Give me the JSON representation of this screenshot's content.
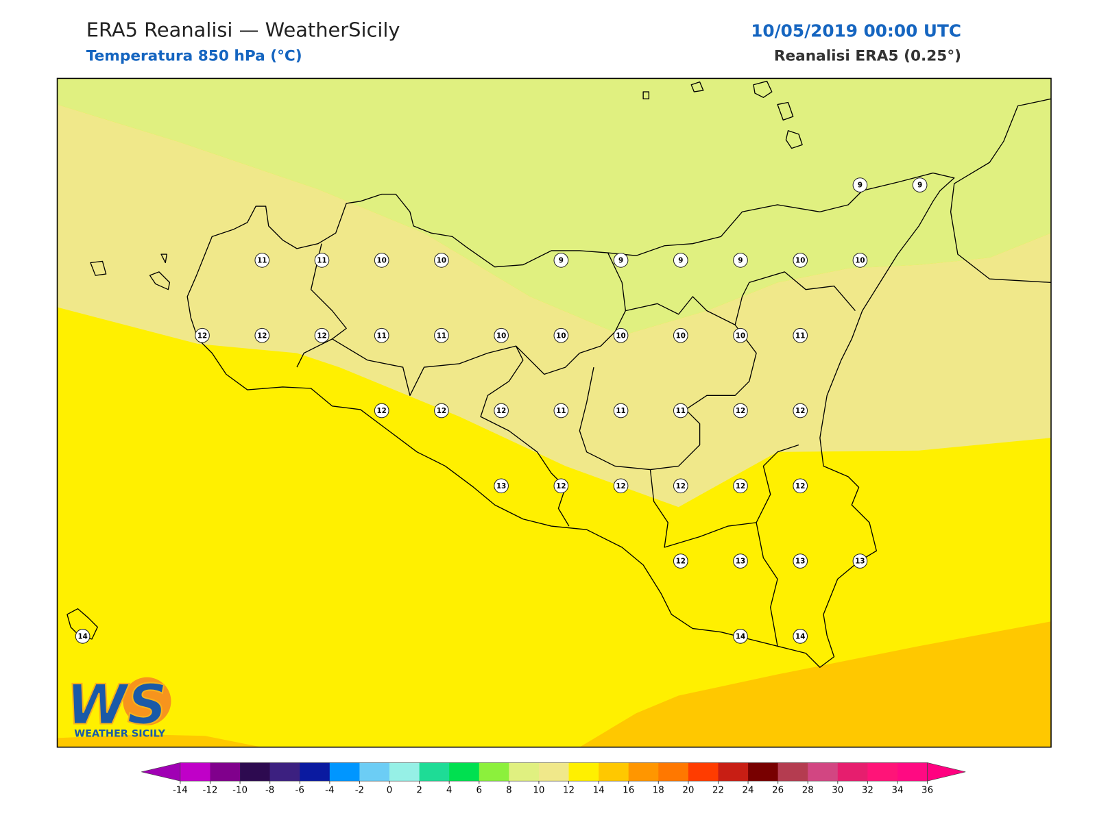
{
  "header": {
    "title": "ERA5 Reanalisi — WeatherSicily",
    "subtitle": "Temperatura 850 hPa (°C)",
    "datetime": "10/05/2019 00:00 UTC",
    "source": "Reanalisi ERA5 (0.25°)"
  },
  "stations": [
    9,
    9,
    11,
    11,
    10,
    10,
    9,
    9,
    9,
    9,
    10,
    10,
    12,
    12,
    12,
    11,
    11,
    10,
    10,
    10,
    10,
    10,
    11,
    12,
    12,
    12,
    11,
    11,
    11,
    12,
    12,
    13,
    12,
    12,
    12,
    12,
    12,
    12,
    13,
    13,
    13,
    14,
    14,
    14
  ],
  "colorbar": {
    "ticks": [
      -14,
      -12,
      -10,
      -8,
      -6,
      -4,
      -2,
      0,
      2,
      4,
      6,
      8,
      10,
      12,
      14,
      16,
      18,
      20,
      22,
      24,
      26,
      28,
      30,
      32,
      34,
      36
    ],
    "colors": [
      "#a000b4",
      "#c000c8",
      "#80008c",
      "#2d0a50",
      "#3c2080",
      "#0a1aa0",
      "#0096ff",
      "#6ccdf5",
      "#96f0e6",
      "#1edc96",
      "#00e050",
      "#8cf03c",
      "#e0f080",
      "#f0e88a",
      "#fff000",
      "#ffc800",
      "#ff9600",
      "#ff7800",
      "#ff3c00",
      "#c81e14",
      "#780000",
      "#b43c50",
      "#d24682",
      "#e61e6e",
      "#ff1478",
      "#ff0a82",
      "#ff0080"
    ]
  },
  "logo": {
    "mark": "WS",
    "text": "WEATHER SICILY"
  }
}
